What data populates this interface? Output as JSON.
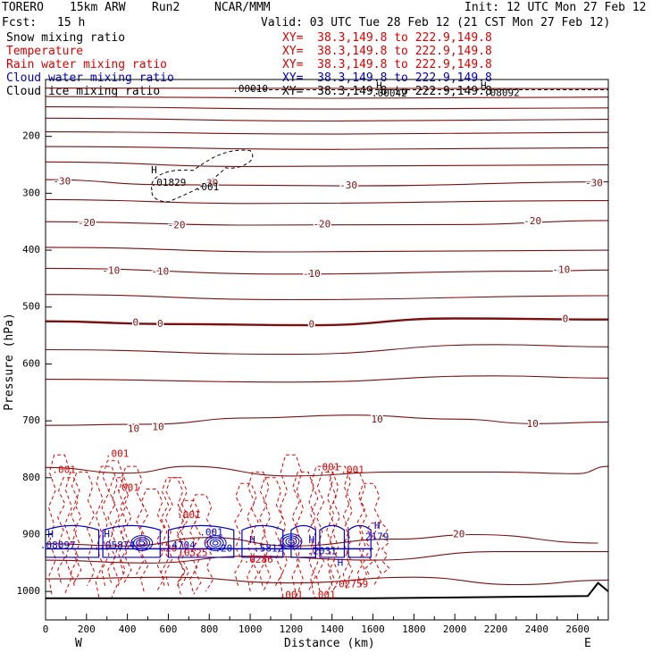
{
  "header": {
    "model": "TORERO",
    "resolution": "15km ARW",
    "run": "Run2",
    "org": "NCAR/MMM",
    "init": "Init: 12 UTC Mon 27 Feb 12",
    "fcst_label": "Fcst:",
    "fcst_value": "15 h",
    "valid": "Valid: 03 UTC Tue 28 Feb 12 (21 CST Mon 27 Feb 12)"
  },
  "legend": [
    {
      "field": "Snow mixing ratio",
      "xy": "XY=  38.3,149.8 to 222.9,149.8",
      "color": "#000000"
    },
    {
      "field": "Temperature",
      "xy": "XY=  38.3,149.8 to 222.9,149.8",
      "color": "#dd0000"
    },
    {
      "field": "Rain water mixing ratio",
      "xy": "XY=  38.3,149.8 to 222.9,149.8",
      "color": "#dd0000"
    },
    {
      "field": "Cloud water mixing ratio",
      "xy": "XY=  38.3,149.8 to 222.9,149.8",
      "color": "#0000cc"
    },
    {
      "field": "Cloud ice mixing ratio",
      "xy": "XY=  38.3,149.8 to 222.9,149.8",
      "color": "#000000"
    }
  ],
  "colors": {
    "temperature": "#7a1010",
    "temperature_zero": "#7a1010",
    "rain": "#dd0000",
    "cloud_water": "#0000cc",
    "snow": "#000000",
    "terrain": "#000000"
  },
  "chart_data": {
    "type": "contour-cross-section",
    "xlabel": "Distance (km)",
    "ylabel": "Pressure (hPa)",
    "xlim": [
      0,
      2750
    ],
    "ylim": [
      1050,
      100
    ],
    "x_ticks": [
      0,
      200,
      400,
      600,
      800,
      1000,
      1200,
      1400,
      1600,
      1800,
      2000,
      2200,
      2400,
      2600
    ],
    "y_ticks": [
      200,
      300,
      400,
      500,
      600,
      700,
      800,
      900,
      1000
    ],
    "x_ends": {
      "left": "W",
      "right": "E"
    },
    "temperature_contours": [
      {
        "level": null,
        "profile": [
          [
            0,
            115
          ],
          [
            2750,
            116
          ]
        ]
      },
      {
        "level": null,
        "profile": [
          [
            0,
            130
          ],
          [
            1400,
            133
          ],
          [
            2750,
            131
          ]
        ]
      },
      {
        "level": null,
        "profile": [
          [
            0,
            148
          ],
          [
            1400,
            152
          ],
          [
            2750,
            150
          ]
        ]
      },
      {
        "level": null,
        "profile": [
          [
            0,
            168
          ],
          [
            1400,
            173
          ],
          [
            2750,
            170
          ]
        ]
      },
      {
        "level": null,
        "profile": [
          [
            0,
            192
          ],
          [
            1400,
            196
          ],
          [
            2750,
            193
          ]
        ]
      },
      {
        "level": null,
        "profile": [
          [
            0,
            218
          ],
          [
            1400,
            223
          ],
          [
            2750,
            220
          ]
        ]
      },
      {
        "level": null,
        "profile": [
          [
            0,
            245
          ],
          [
            1000,
            253
          ],
          [
            2750,
            250
          ]
        ]
      },
      {
        "level": -30,
        "profile": [
          [
            0,
            276
          ],
          [
            600,
            285
          ],
          [
            1500,
            287
          ],
          [
            2750,
            280
          ]
        ]
      },
      {
        "level": null,
        "profile": [
          [
            0,
            311
          ],
          [
            1000,
            318
          ],
          [
            2750,
            313
          ]
        ]
      },
      {
        "level": -20,
        "profile": [
          [
            0,
            350
          ],
          [
            1000,
            356
          ],
          [
            2000,
            355
          ],
          [
            2750,
            348
          ]
        ]
      },
      {
        "level": null,
        "profile": [
          [
            0,
            395
          ],
          [
            1200,
            403
          ],
          [
            2750,
            400
          ]
        ]
      },
      {
        "level": -10,
        "profile": [
          [
            0,
            432
          ],
          [
            1200,
            442
          ],
          [
            2400,
            437
          ],
          [
            2750,
            435
          ]
        ]
      },
      {
        "level": null,
        "profile": [
          [
            0,
            478
          ],
          [
            1200,
            487
          ],
          [
            2750,
            480
          ]
        ]
      },
      {
        "level": 0,
        "profile": [
          [
            0,
            525
          ],
          [
            600,
            530
          ],
          [
            1300,
            532
          ],
          [
            2000,
            520
          ],
          [
            2750,
            522
          ]
        ]
      },
      {
        "level": null,
        "profile": [
          [
            0,
            575
          ],
          [
            1200,
            583
          ],
          [
            2200,
            566
          ],
          [
            2750,
            570
          ]
        ]
      },
      {
        "level": null,
        "profile": [
          [
            0,
            627
          ],
          [
            1200,
            632
          ],
          [
            2200,
            621
          ],
          [
            2750,
            625
          ]
        ]
      },
      {
        "level": 10,
        "profile": [
          [
            0,
            708
          ],
          [
            500,
            706
          ],
          [
            1000,
            695
          ],
          [
            1500,
            690
          ],
          [
            2000,
            697
          ],
          [
            2400,
            705
          ],
          [
            2750,
            702
          ]
        ]
      },
      {
        "level": null,
        "profile": [
          [
            0,
            782
          ],
          [
            400,
            792
          ],
          [
            700,
            780
          ],
          [
            1200,
            797
          ],
          [
            1700,
            790
          ],
          [
            2200,
            790
          ],
          [
            2600,
            793
          ],
          [
            2750,
            780
          ]
        ]
      },
      {
        "level": 20,
        "profile": [
          [
            0,
            916
          ],
          [
            400,
            920
          ],
          [
            800,
            905
          ],
          [
            1200,
            920
          ],
          [
            1700,
            908
          ],
          [
            2100,
            900
          ],
          [
            2700,
            915
          ]
        ]
      },
      {
        "level": null,
        "profile": [
          [
            0,
            945
          ],
          [
            500,
            950
          ],
          [
            1000,
            938
          ],
          [
            1600,
            945
          ],
          [
            2200,
            930
          ],
          [
            2750,
            930
          ]
        ]
      },
      {
        "level": null,
        "profile": [
          [
            0,
            978
          ],
          [
            600,
            975
          ],
          [
            1200,
            985
          ],
          [
            1800,
            975
          ],
          [
            2300,
            988
          ],
          [
            2750,
            980
          ]
        ]
      }
    ],
    "temperature_labels": [
      {
        "text": "-30",
        "x": 80,
        "p": 280
      },
      {
        "text": "-30",
        "x": 800,
        "p": 283
      },
      {
        "text": "-30",
        "x": 1480,
        "p": 287
      },
      {
        "text": "-30",
        "x": 2680,
        "p": 283
      },
      {
        "text": "-20",
        "x": 200,
        "p": 353
      },
      {
        "text": "-20",
        "x": 640,
        "p": 357
      },
      {
        "text": "-20",
        "x": 1350,
        "p": 355
      },
      {
        "text": "-20",
        "x": 2380,
        "p": 350
      },
      {
        "text": "-10",
        "x": 320,
        "p": 437
      },
      {
        "text": "-10",
        "x": 560,
        "p": 438
      },
      {
        "text": "-10",
        "x": 1300,
        "p": 442
      },
      {
        "text": "-10",
        "x": 2520,
        "p": 435
      },
      {
        "text": "0",
        "x": 440,
        "p": 528
      },
      {
        "text": "0",
        "x": 560,
        "p": 530
      },
      {
        "text": "0",
        "x": 1300,
        "p": 531
      },
      {
        "text": "0",
        "x": 2540,
        "p": 522
      },
      {
        "text": "10",
        "x": 430,
        "p": 715
      },
      {
        "text": "10",
        "x": 550,
        "p": 712
      },
      {
        "text": "10",
        "x": 1620,
        "p": 698
      },
      {
        "text": "10",
        "x": 2380,
        "p": 706
      },
      {
        "text": "20",
        "x": 2020,
        "p": 900
      }
    ],
    "rain_labels": [
      {
        "text": ".001",
        "x": 90,
        "p": 787
      },
      {
        "text": ".001",
        "x": 350,
        "p": 759
      },
      {
        "text": ".001",
        "x": 400,
        "p": 818
      },
      {
        "text": ".001",
        "x": 700,
        "p": 866
      },
      {
        "text": ".001",
        "x": 1200,
        "p": 1007
      },
      {
        "text": ".001",
        "x": 1360,
        "p": 1007
      },
      {
        "text": ".001",
        "x": 1380,
        "p": 782
      },
      {
        "text": ".001",
        "x": 1500,
        "p": 787
      },
      {
        "text": ".0525",
        "x": 720,
        "p": 933
      },
      {
        "text": ".02759",
        "x": 1490,
        "p": 988
      },
      {
        "text": ".0286",
        "x": 1040,
        "p": 945
      },
      {
        "text": ".20",
        "x": 600,
        "p": 925
      }
    ],
    "cloud_water_labels": [
      {
        "text": ".08097",
        "x": 60,
        "p": 920
      },
      {
        "text": ".05874",
        "x": 350,
        "p": 920
      },
      {
        "text": ".4704",
        "x": 660,
        "p": 920
      },
      {
        "text": ".001",
        "x": 810,
        "p": 897
      },
      {
        "text": ".20",
        "x": 870,
        "p": 925
      },
      {
        "text": ".5812",
        "x": 1090,
        "p": 925
      },
      {
        "text": ".2031",
        "x": 1350,
        "p": 930
      },
      {
        "text": "2179",
        "x": 1620,
        "p": 905
      }
    ],
    "snow_labels": [
      {
        "text": ".00010",
        "x": 1000,
        "p": 117
      },
      {
        "text": ".01829",
        "x": 600,
        "p": 282
      },
      {
        "text": ".001",
        "x": 790,
        "p": 290
      },
      {
        "text": ".00042",
        "x": 1680,
        "p": 125
      },
      {
        "text": ".08092",
        "x": 2230,
        "p": 124
      }
    ],
    "highs": [
      {
        "text": "H",
        "x": 530,
        "p": 260
      },
      {
        "text": "H",
        "x": 1630,
        "p": 112
      },
      {
        "text": "H",
        "x": 2140,
        "p": 112
      },
      {
        "text": "H",
        "x": 300,
        "p": 900
      },
      {
        "text": "H",
        "x": 1010,
        "p": 910
      },
      {
        "text": "H",
        "x": 1300,
        "p": 910
      },
      {
        "text": "H",
        "x": 1440,
        "p": 950
      },
      {
        "text": "H",
        "x": 1620,
        "p": 885
      },
      {
        "text": "H",
        "x": 25,
        "p": 900
      }
    ]
  }
}
